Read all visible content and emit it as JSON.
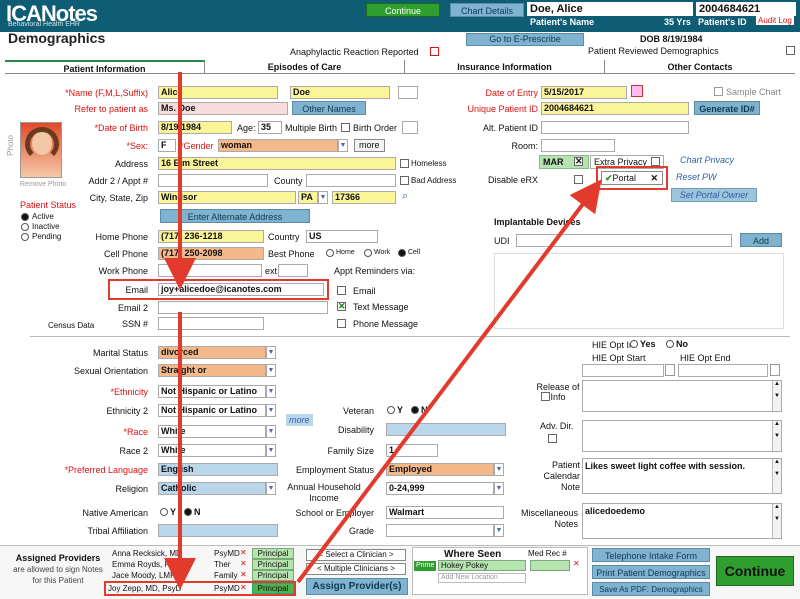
{
  "header": {
    "logo": "ICANotes",
    "logo_sub": "Behavioral Health EHR",
    "continue": "Continue",
    "chart_details": "Chart Details",
    "patient_name": "Doe, Alice",
    "patient_name_label": "Patient's Name",
    "patient_id": "2004684621",
    "age": "35 Yrs",
    "patient_id_label": "Patient's ID",
    "audit_log": "Audit Log",
    "go_eprescribe": "Go to E-Prescribe",
    "dob": "DOB 8/19/1984"
  },
  "page_title": "Demographics",
  "anaphylactic": "Anaphylactic Reaction Reported",
  "reviewed": "Patient Reviewed Demographics",
  "tabs": [
    "Patient Information",
    "Episodes of Care",
    "Insurance Information",
    "Other Contacts"
  ],
  "labels": {
    "name": "*Name (F,M,L,Suffix)",
    "refer": "Refer to patient as",
    "dob": "*Date of Birth",
    "age": "Age:",
    "multiple_birth": "Multiple Birth",
    "birth_order": "Birth Order",
    "sex": "*Sex:",
    "gender": "*Gender",
    "more": "more",
    "address": "Address",
    "homeless": "Homeless",
    "addr2": "Addr 2 / Appt #",
    "county": "County",
    "bad_address": "Bad Address",
    "city": "City, State, Zip",
    "alt_address": "Enter Alternate Address",
    "home_phone": "Home Phone",
    "country": "Country",
    "cell_phone": "Cell Phone",
    "best_phone": "Best Phone",
    "home": "Home",
    "work": "Work",
    "cell": "Cell",
    "work_phone": "Work Phone",
    "ext": "ext",
    "appt_reminders": "Appt Reminders via:",
    "email": "Email",
    "email2": "Email 2",
    "ssn": "SSN #",
    "census": "Census Data",
    "text_msg": "Text Message",
    "phone_msg": "Phone Message",
    "email_opt": "Email",
    "remove_photo": "Remove Photo",
    "photo": "Photo",
    "patient_status": "Patient Status",
    "active": "Active",
    "inactive": "Inactive",
    "pending": "Pending",
    "date_entry": "Date of Entry",
    "sample_chart": "Sample Chart",
    "unique_id": "Unique Patient ID",
    "generate_id": "Generate ID#",
    "alt_id": "Alt. Patient ID",
    "room": "Room:",
    "mar": "MAR",
    "extra_privacy": "Extra Privacy",
    "chart_privacy": "Chart Privacy",
    "disable_erx": "Disable eRX",
    "portal": "Portal",
    "reset_pw": "Reset PW",
    "set_portal_owner": "Set Portal Owner",
    "implantable": "Implantable Devices",
    "udi": "UDI",
    "add": "Add",
    "other_names": "Other Names",
    "marital": "Marital Status",
    "orientation": "Sexual Orientation",
    "ethnicity": "*Ethnicity",
    "ethnicity2": "Ethnicity 2",
    "race": "*Race",
    "race2": "Race 2",
    "pref_lang": "*Preferred Language",
    "religion": "Religion",
    "native": "Native American",
    "tribal": "Tribal Affiliation",
    "veteran": "Veteran",
    "disability": "Disability",
    "family_size": "Family Size",
    "employment": "Employment Status",
    "household": "Annual Household Income",
    "school": "School or Employer",
    "grade": "Grade",
    "more_race": "more",
    "hie_opt_in": "HIE Opt In",
    "yes": "Yes",
    "no": "No",
    "hie_start": "HIE Opt Start",
    "hie_end": "HIE Opt End",
    "release": "Release of Info",
    "adv_dir": "Adv. Dir.",
    "calendar_note": "Patient Calendar Note",
    "misc_notes": "Miscellaneous Notes",
    "y": "Y",
    "n": "N"
  },
  "values": {
    "first": "Alice",
    "last": "Doe",
    "refer": "Ms. Doe",
    "dob": "8/19/1984",
    "age": "35",
    "sex": "F",
    "gender": "woman",
    "address": "16 Elm Street",
    "city": "Windsor",
    "state": "PA",
    "zip": "17366",
    "home_phone": "(717) 236-1218",
    "country": "US",
    "cell_phone": "(717) 250-2098",
    "email": "joy+alicedoe@icanotes.com",
    "date_entry": "5/15/2017",
    "unique_id": "2004684621",
    "marital": "divorced",
    "orientation": "Straight or",
    "ethnicity": "Not Hispanic or Latino",
    "ethnicity2": "Not Hispanic or Latino",
    "race": "White",
    "race2": "White",
    "lang": "English",
    "religion": "Catholic",
    "family_size": "1",
    "employment": "Employed",
    "household": "0-24,999",
    "school": "Walmart",
    "calendar_note": "Likes sweet light coffee with session.",
    "misc_notes": "alicedoedemo"
  },
  "providers": {
    "title": "Assigned Providers",
    "sub": "are allowed to sign Notes for this Patient",
    "rows": [
      {
        "name": "Anna Recksick, MD",
        "role": "PsyMD",
        "status": "Principal"
      },
      {
        "name": "Emma Royds, RN",
        "role": "Ther",
        "status": "Principal"
      },
      {
        "name": "Jace Moody, LMF",
        "role": "Family",
        "status": "Principal"
      },
      {
        "name": "Joy Zepp, MD, PsyD",
        "role": "PsyMD",
        "status": "Principal"
      }
    ],
    "select_clinician": "< Select a Clinician >",
    "multiple_clinicians": "< Multiple Clinicians >",
    "assign": "Assign Provider(s)"
  },
  "where_seen": {
    "title": "Where Seen",
    "med_rec": "Med Rec #",
    "prime": "Prime",
    "location": "Hokey Pokey",
    "add_location": "Add New Location"
  },
  "bottom_buttons": {
    "telephone": "Telephone Intake Form",
    "print": "Print Patient Demographics",
    "save_pdf": "Save As PDF: Demographics",
    "continue": "Continue"
  }
}
